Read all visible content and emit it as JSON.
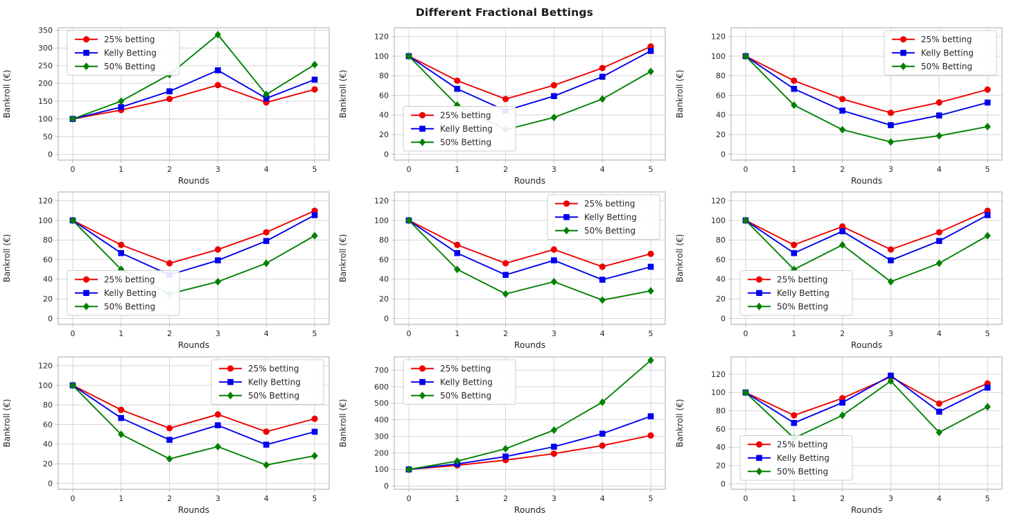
{
  "title": "Different Fractional Bettings",
  "axis": {
    "xlabel": "Rounds",
    "ylabel": "Bankroll (€)"
  },
  "legend_labels": [
    "25% betting",
    "Kelly Betting",
    "50% Betting"
  ],
  "colors": {
    "red": "#ee0000",
    "blue": "#0000ee",
    "green": "#008000",
    "grid": "#d4d4d4",
    "spine": "#b8b8b8",
    "tick_text": "#262626",
    "title_text": "#1a1a1a",
    "legend_border": "#cccccc",
    "background": "#ffffff"
  },
  "chart_data": [
    {
      "type": "line",
      "position": "top-left",
      "xlabel": "Rounds",
      "ylabel": "Bankroll (€)",
      "x": [
        0,
        1,
        2,
        3,
        4,
        5
      ],
      "xlim": [
        -0.3,
        5.3
      ],
      "yticks": [
        0,
        50,
        100,
        150,
        200,
        250,
        300,
        350
      ],
      "ylim": [
        -16,
        357
      ],
      "legend_position": "upper-left",
      "series": [
        {
          "name": "25% betting",
          "color": "#ee0000",
          "marker": "circle",
          "values": [
            100,
            125,
            156.25,
            195.31,
            146.48,
            183.11
          ]
        },
        {
          "name": "Kelly Betting",
          "color": "#0000ee",
          "marker": "square",
          "values": [
            100,
            133.33,
            177.78,
            237.04,
            158.02,
            210.7
          ]
        },
        {
          "name": "50% Betting",
          "color": "#008000",
          "marker": "diamond",
          "values": [
            100,
            150,
            225,
            337.5,
            168.75,
            253.13
          ]
        }
      ]
    },
    {
      "type": "line",
      "position": "top-center",
      "xlabel": "Rounds",
      "ylabel": "Bankroll (€)",
      "x": [
        0,
        1,
        2,
        3,
        4,
        5
      ],
      "xlim": [
        -0.3,
        5.3
      ],
      "yticks": [
        0,
        20,
        40,
        60,
        80,
        100,
        120
      ],
      "ylim": [
        -6,
        129
      ],
      "legend_position": "lower-left",
      "series": [
        {
          "name": "25% betting",
          "color": "#ee0000",
          "marker": "circle",
          "values": [
            100,
            75,
            56.25,
            70.31,
            87.89,
            109.86
          ]
        },
        {
          "name": "Kelly Betting",
          "color": "#0000ee",
          "marker": "square",
          "values": [
            100,
            66.67,
            44.44,
            59.26,
            79.01,
            105.35
          ]
        },
        {
          "name": "50% Betting",
          "color": "#008000",
          "marker": "diamond",
          "values": [
            100,
            50,
            25,
            37.5,
            56.25,
            84.38
          ]
        }
      ]
    },
    {
      "type": "line",
      "position": "top-right",
      "xlabel": "Rounds",
      "ylabel": "Bankroll (€)",
      "x": [
        0,
        1,
        2,
        3,
        4,
        5
      ],
      "xlim": [
        -0.3,
        5.3
      ],
      "yticks": [
        0,
        20,
        40,
        60,
        80,
        100,
        120
      ],
      "ylim": [
        -6,
        129
      ],
      "legend_position": "upper-right",
      "series": [
        {
          "name": "25% betting",
          "color": "#ee0000",
          "marker": "circle",
          "values": [
            100,
            75,
            56.25,
            42.19,
            52.73,
            65.92
          ]
        },
        {
          "name": "Kelly Betting",
          "color": "#0000ee",
          "marker": "square",
          "values": [
            100,
            66.67,
            44.44,
            29.63,
            39.51,
            52.67
          ]
        },
        {
          "name": "50% Betting",
          "color": "#008000",
          "marker": "diamond",
          "values": [
            100,
            50,
            25,
            12.5,
            18.75,
            28.13
          ]
        }
      ]
    },
    {
      "type": "line",
      "position": "middle-left",
      "xlabel": "Rounds",
      "ylabel": "Bankroll (€)",
      "x": [
        0,
        1,
        2,
        3,
        4,
        5
      ],
      "xlim": [
        -0.3,
        5.3
      ],
      "yticks": [
        0,
        20,
        40,
        60,
        80,
        100,
        120
      ],
      "ylim": [
        -6,
        129
      ],
      "legend_position": "lower-left",
      "series": [
        {
          "name": "25% betting",
          "color": "#ee0000",
          "marker": "circle",
          "values": [
            100,
            75,
            56.25,
            70.31,
            87.89,
            109.86
          ]
        },
        {
          "name": "Kelly Betting",
          "color": "#0000ee",
          "marker": "square",
          "values": [
            100,
            66.67,
            44.44,
            59.26,
            79.01,
            105.35
          ]
        },
        {
          "name": "50% Betting",
          "color": "#008000",
          "marker": "diamond",
          "values": [
            100,
            50,
            25,
            37.5,
            56.25,
            84.38
          ]
        }
      ]
    },
    {
      "type": "line",
      "position": "middle-center",
      "xlabel": "Rounds",
      "ylabel": "Bankroll (€)",
      "x": [
        0,
        1,
        2,
        3,
        4,
        5
      ],
      "xlim": [
        -0.3,
        5.3
      ],
      "yticks": [
        0,
        20,
        40,
        60,
        80,
        100,
        120
      ],
      "ylim": [
        -6,
        129
      ],
      "legend_position": "upper-right",
      "series": [
        {
          "name": "25% betting",
          "color": "#ee0000",
          "marker": "circle",
          "values": [
            100,
            75,
            56.25,
            70.31,
            52.73,
            65.92
          ]
        },
        {
          "name": "Kelly Betting",
          "color": "#0000ee",
          "marker": "square",
          "values": [
            100,
            66.67,
            44.44,
            59.26,
            39.51,
            52.67
          ]
        },
        {
          "name": "50% Betting",
          "color": "#008000",
          "marker": "diamond",
          "values": [
            100,
            50,
            25,
            37.5,
            18.75,
            28.13
          ]
        }
      ]
    },
    {
      "type": "line",
      "position": "middle-right",
      "xlabel": "Rounds",
      "ylabel": "Bankroll (€)",
      "x": [
        0,
        1,
        2,
        3,
        4,
        5
      ],
      "xlim": [
        -0.3,
        5.3
      ],
      "yticks": [
        0,
        20,
        40,
        60,
        80,
        100,
        120
      ],
      "ylim": [
        -6,
        129
      ],
      "legend_position": "lower-left",
      "series": [
        {
          "name": "25% betting",
          "color": "#ee0000",
          "marker": "circle",
          "values": [
            100,
            75,
            93.75,
            70.31,
            87.89,
            109.86
          ]
        },
        {
          "name": "Kelly Betting",
          "color": "#0000ee",
          "marker": "square",
          "values": [
            100,
            66.67,
            88.89,
            59.26,
            79.01,
            105.35
          ]
        },
        {
          "name": "50% Betting",
          "color": "#008000",
          "marker": "diamond",
          "values": [
            100,
            50,
            75,
            37.5,
            56.25,
            84.38
          ]
        }
      ]
    },
    {
      "type": "line",
      "position": "bottom-left",
      "xlabel": "Rounds",
      "ylabel": "Bankroll (€)",
      "x": [
        0,
        1,
        2,
        3,
        4,
        5
      ],
      "xlim": [
        -0.3,
        5.3
      ],
      "yticks": [
        0,
        20,
        40,
        60,
        80,
        100,
        120
      ],
      "ylim": [
        -6,
        129
      ],
      "legend_position": "upper-right",
      "series": [
        {
          "name": "25% betting",
          "color": "#ee0000",
          "marker": "circle",
          "values": [
            100,
            75,
            56.25,
            70.31,
            52.73,
            65.92
          ]
        },
        {
          "name": "Kelly Betting",
          "color": "#0000ee",
          "marker": "square",
          "values": [
            100,
            66.67,
            44.44,
            59.26,
            39.51,
            52.67
          ]
        },
        {
          "name": "50% Betting",
          "color": "#008000",
          "marker": "diamond",
          "values": [
            100,
            50,
            25,
            37.5,
            18.75,
            28.13
          ]
        }
      ]
    },
    {
      "type": "line",
      "position": "bottom-center",
      "xlabel": "Rounds",
      "ylabel": "Bankroll (€)",
      "x": [
        0,
        1,
        2,
        3,
        4,
        5
      ],
      "xlim": [
        -0.3,
        5.3
      ],
      "yticks": [
        0,
        100,
        200,
        300,
        400,
        500,
        600,
        700
      ],
      "ylim": [
        -20,
        780
      ],
      "legend_position": "upper-left",
      "series": [
        {
          "name": "25% betting",
          "color": "#ee0000",
          "marker": "circle",
          "values": [
            100,
            125,
            156.25,
            195.31,
            244.14,
            305.18
          ]
        },
        {
          "name": "Kelly Betting",
          "color": "#0000ee",
          "marker": "square",
          "values": [
            100,
            133.33,
            177.78,
            237.04,
            316.05,
            421.4
          ]
        },
        {
          "name": "50% Betting",
          "color": "#008000",
          "marker": "diamond",
          "values": [
            100,
            150,
            225,
            337.5,
            506.25,
            759.38
          ]
        }
      ]
    },
    {
      "type": "line",
      "position": "bottom-right",
      "xlabel": "Rounds",
      "ylabel": "Bankroll (€)",
      "x": [
        0,
        1,
        2,
        3,
        4,
        5
      ],
      "xlim": [
        -0.3,
        5.3
      ],
      "yticks": [
        0,
        20,
        40,
        60,
        80,
        100,
        120
      ],
      "ylim": [
        -6,
        139
      ],
      "legend_position": "lower-left",
      "series": [
        {
          "name": "25% betting",
          "color": "#ee0000",
          "marker": "circle",
          "values": [
            100,
            75,
            93.75,
            117.19,
            87.89,
            109.86
          ]
        },
        {
          "name": "Kelly Betting",
          "color": "#0000ee",
          "marker": "square",
          "values": [
            100,
            66.67,
            88.89,
            118.52,
            79.01,
            105.35
          ]
        },
        {
          "name": "50% Betting",
          "color": "#008000",
          "marker": "diamond",
          "values": [
            100,
            50,
            75,
            112.5,
            56.25,
            84.38
          ]
        }
      ]
    }
  ]
}
